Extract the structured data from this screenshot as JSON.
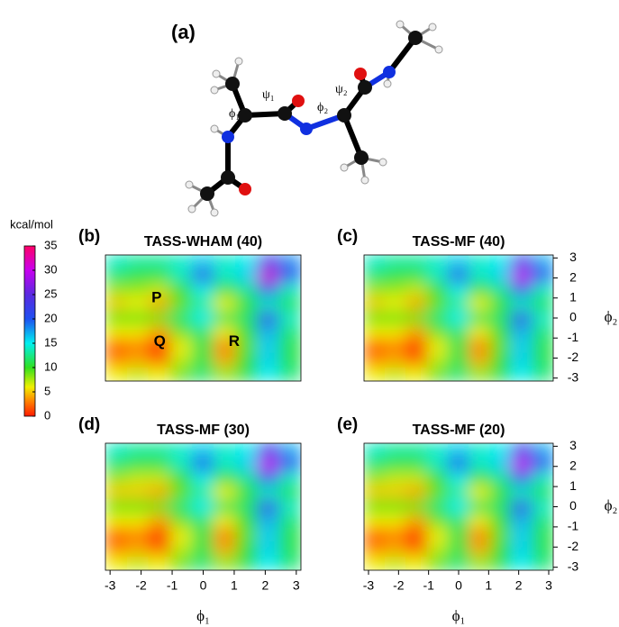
{
  "figure_label": "(a)",
  "molecule": {
    "angle_labels": [
      "ϕ₁",
      "ψ₁",
      "ϕ₂",
      "ψ₂"
    ]
  },
  "colorbar": {
    "title": "kcal/mol",
    "lim": [
      0,
      35
    ],
    "ticks": [
      0,
      5,
      10,
      15,
      20,
      25,
      30,
      35
    ],
    "colormap": [
      {
        "value": 0,
        "color": "#ff1a00"
      },
      {
        "value": 3,
        "color": "#ff8000"
      },
      {
        "value": 6,
        "color": "#f0f000"
      },
      {
        "value": 10,
        "color": "#30e020"
      },
      {
        "value": 15,
        "color": "#00f0f0"
      },
      {
        "value": 20,
        "color": "#1e50f0"
      },
      {
        "value": 25,
        "color": "#5a2ae0"
      },
      {
        "value": 30,
        "color": "#c800f0"
      },
      {
        "value": 35,
        "color": "#ff0066"
      }
    ]
  },
  "chart_data": [
    {
      "type": "heatmap",
      "panel": "(b)",
      "title": "TASS-WHAM (40)",
      "x": [
        -2.8,
        -2.1,
        -1.4,
        -0.7,
        0,
        0.7,
        1.4,
        2.1,
        2.8
      ],
      "y": [
        2.8,
        2.1,
        1.4,
        0.7,
        0,
        -0.7,
        -1.4,
        -2.1,
        -2.8
      ],
      "xlim": [
        -3.15,
        3.15
      ],
      "ylim": [
        -3.15,
        3.15
      ],
      "values": [
        [
          14,
          13,
          13,
          14,
          16,
          14,
          15,
          22,
          18
        ],
        [
          12,
          11,
          11,
          14,
          22,
          14,
          16,
          31,
          20
        ],
        [
          8,
          8,
          7,
          10,
          15,
          10,
          13,
          20,
          14
        ],
        [
          5,
          6,
          4,
          9,
          13,
          6,
          10,
          14,
          11
        ],
        [
          9,
          9,
          9,
          12,
          15,
          11,
          12,
          22,
          14
        ],
        [
          6,
          6,
          4,
          9,
          12,
          6,
          10,
          17,
          12
        ],
        [
          2,
          3,
          0,
          6,
          11,
          3,
          9,
          16,
          11
        ],
        [
          3,
          4,
          2,
          7,
          11,
          4,
          10,
          16,
          11
        ],
        [
          6,
          7,
          6,
          9,
          12,
          8,
          11,
          15,
          12
        ]
      ],
      "annotations": [
        {
          "text": "P",
          "x": -1.5,
          "y": 1.0
        },
        {
          "text": "Q",
          "x": -1.4,
          "y": -1.2
        },
        {
          "text": "R",
          "x": 1.0,
          "y": -1.2
        }
      ]
    },
    {
      "type": "heatmap",
      "panel": "(c)",
      "title": "TASS-MF (40)",
      "x": [
        -2.8,
        -2.1,
        -1.4,
        -0.7,
        0,
        0.7,
        1.4,
        2.1,
        2.8
      ],
      "y": [
        2.8,
        2.1,
        1.4,
        0.7,
        0,
        -0.7,
        -1.4,
        -2.1,
        -2.8
      ],
      "xlim": [
        -3.15,
        3.15
      ],
      "ylim": [
        -3.15,
        3.15
      ],
      "yticks": [
        -3,
        -2,
        -1,
        0,
        1,
        2,
        3
      ],
      "ylabel": "ϕ₂",
      "values": [
        [
          14,
          13,
          13,
          14,
          16,
          14,
          15,
          22,
          17
        ],
        [
          12,
          11,
          11,
          14,
          22,
          14,
          16,
          30,
          20
        ],
        [
          8,
          8,
          7,
          10,
          15,
          10,
          13,
          20,
          14
        ],
        [
          5,
          6,
          4,
          9,
          13,
          6,
          10,
          14,
          11
        ],
        [
          9,
          9,
          9,
          12,
          15,
          11,
          12,
          22,
          14
        ],
        [
          6,
          6,
          4,
          9,
          12,
          6,
          10,
          17,
          12
        ],
        [
          2,
          3,
          0,
          6,
          11,
          3,
          9,
          16,
          11
        ],
        [
          3,
          4,
          2,
          7,
          11,
          4,
          10,
          16,
          11
        ],
        [
          6,
          7,
          6,
          9,
          12,
          8,
          11,
          15,
          12
        ]
      ]
    },
    {
      "type": "heatmap",
      "panel": "(d)",
      "title": "TASS-MF (30)",
      "x": [
        -2.8,
        -2.1,
        -1.4,
        -0.7,
        0,
        0.7,
        1.4,
        2.1,
        2.8
      ],
      "y": [
        2.8,
        2.1,
        1.4,
        0.7,
        0,
        -0.7,
        -1.4,
        -2.1,
        -2.8
      ],
      "xlim": [
        -3.15,
        3.15
      ],
      "ylim": [
        -3.15,
        3.15
      ],
      "xticks": [
        -3,
        -2,
        -1,
        0,
        1,
        2,
        3
      ],
      "xlabel": "ϕ₁",
      "values": [
        [
          14,
          13,
          13,
          14,
          16,
          14,
          15,
          22,
          17
        ],
        [
          12,
          11,
          11,
          14,
          21,
          14,
          16,
          30,
          20
        ],
        [
          8,
          7,
          7,
          10,
          15,
          10,
          13,
          20,
          14
        ],
        [
          5,
          5,
          4,
          9,
          13,
          6,
          10,
          14,
          11
        ],
        [
          9,
          9,
          9,
          12,
          15,
          11,
          12,
          22,
          14
        ],
        [
          6,
          6,
          4,
          9,
          12,
          6,
          10,
          17,
          12
        ],
        [
          2,
          3,
          0,
          6,
          11,
          3,
          9,
          16,
          11
        ],
        [
          3,
          4,
          2,
          7,
          11,
          4,
          10,
          16,
          11
        ],
        [
          6,
          7,
          6,
          9,
          12,
          8,
          11,
          15,
          12
        ]
      ]
    },
    {
      "type": "heatmap",
      "panel": "(e)",
      "title": "TASS-MF (20)",
      "x": [
        -2.8,
        -2.1,
        -1.4,
        -0.7,
        0,
        0.7,
        1.4,
        2.1,
        2.8
      ],
      "y": [
        2.8,
        2.1,
        1.4,
        0.7,
        0,
        -0.7,
        -1.4,
        -2.1,
        -2.8
      ],
      "xlim": [
        -3.15,
        3.15
      ],
      "ylim": [
        -3.15,
        3.15
      ],
      "xticks": [
        -3,
        -2,
        -1,
        0,
        1,
        2,
        3
      ],
      "yticks": [
        -3,
        -2,
        -1,
        0,
        1,
        2,
        3
      ],
      "xlabel": "ϕ₁",
      "ylabel": "ϕ₂",
      "values": [
        [
          14,
          13,
          13,
          14,
          16,
          14,
          15,
          22,
          17
        ],
        [
          12,
          11,
          11,
          14,
          21,
          14,
          16,
          30,
          20
        ],
        [
          8,
          7,
          7,
          10,
          15,
          10,
          13,
          20,
          14
        ],
        [
          5,
          5,
          4,
          9,
          13,
          6,
          10,
          14,
          11
        ],
        [
          9,
          9,
          9,
          12,
          15,
          11,
          12,
          22,
          14
        ],
        [
          6,
          6,
          4,
          9,
          12,
          6,
          10,
          17,
          12
        ],
        [
          2,
          3,
          0,
          6,
          11,
          3,
          9,
          16,
          11
        ],
        [
          3,
          4,
          2,
          7,
          11,
          4,
          10,
          16,
          11
        ],
        [
          6,
          7,
          6,
          9,
          12,
          8,
          11,
          15,
          12
        ]
      ]
    }
  ]
}
